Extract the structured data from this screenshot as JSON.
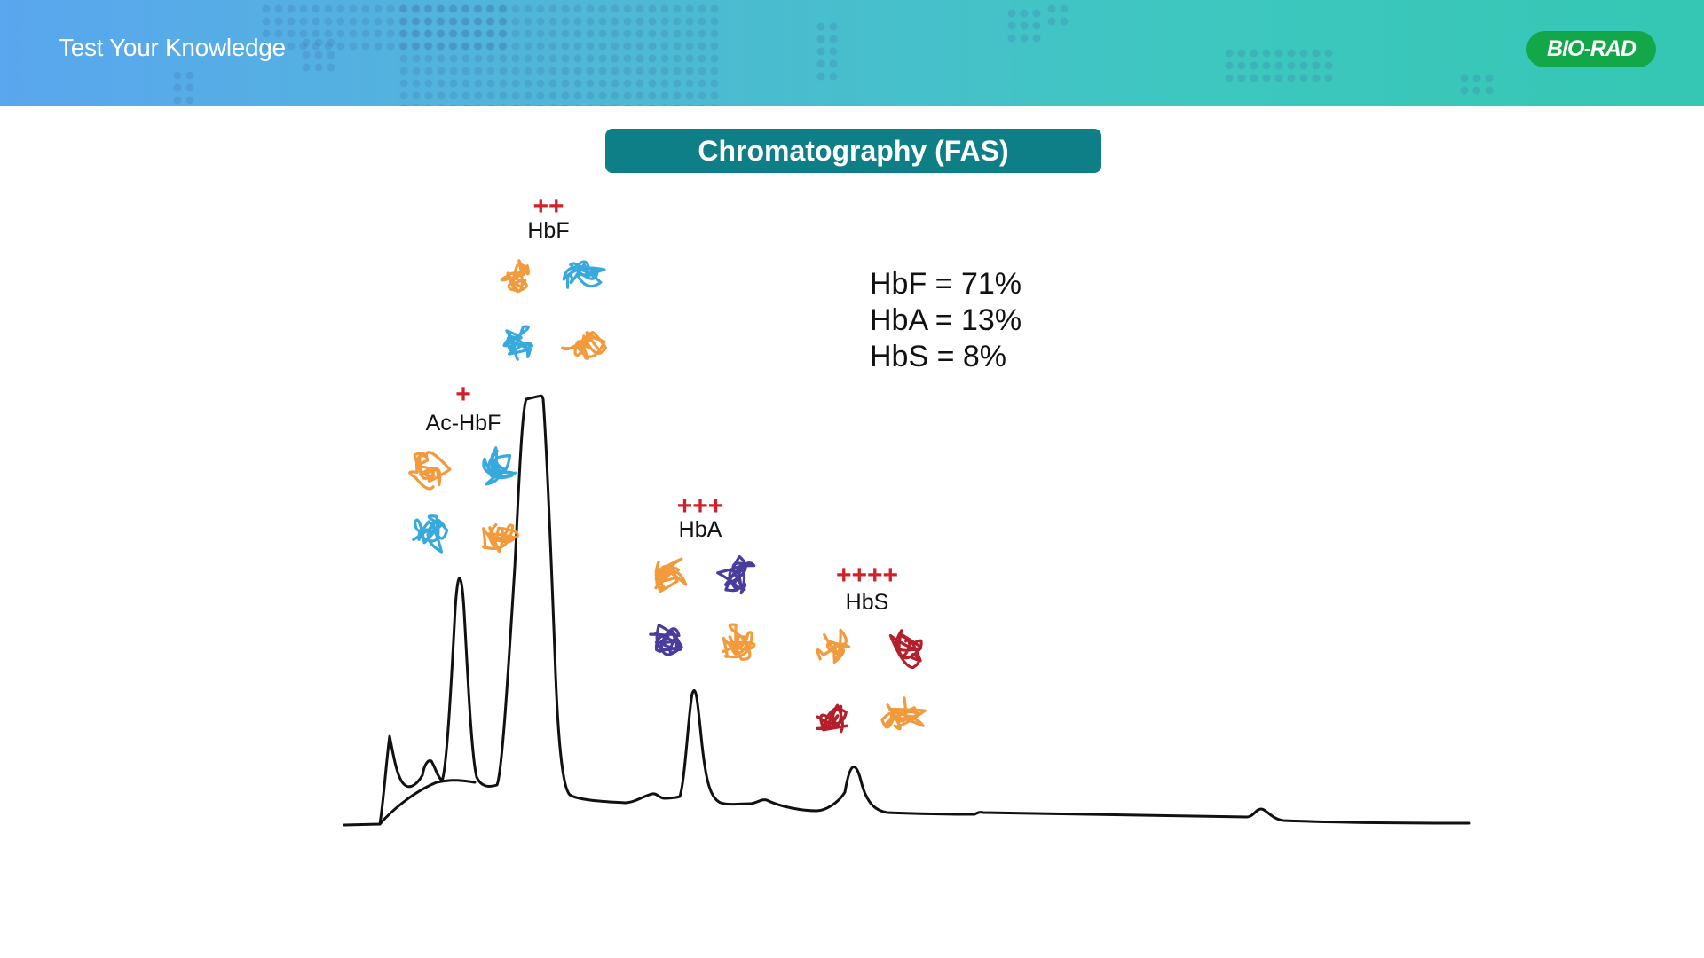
{
  "header": {
    "title": "Test Your Knowledge",
    "logo_text": "BIO-RAD",
    "gradient_start": "#5aa6ef",
    "gradient_end": "#35c7b3",
    "logo_color": "#12a84a"
  },
  "slide": {
    "title": "Chromatography (FAS)",
    "title_color": "#0e7f86"
  },
  "peaks": [
    {
      "label": "Ac-HbF",
      "charge": "+"
    },
    {
      "label": "HbF",
      "charge": "++"
    },
    {
      "label": "HbA",
      "charge": "+++"
    },
    {
      "label": "HbS",
      "charge": "++++"
    }
  ],
  "results": [
    {
      "text": "HbF = 71%"
    },
    {
      "text": "HbA = 13%"
    },
    {
      "text": "HbS = 8%"
    }
  ],
  "colors": {
    "charge": "#d0202a",
    "alpha_chain": "#f39a3c",
    "gamma_chain": "#38a9dc",
    "beta_chain": "#4a3c9c",
    "beta_s_chain": "#b3202c",
    "trace": "#111111"
  }
}
